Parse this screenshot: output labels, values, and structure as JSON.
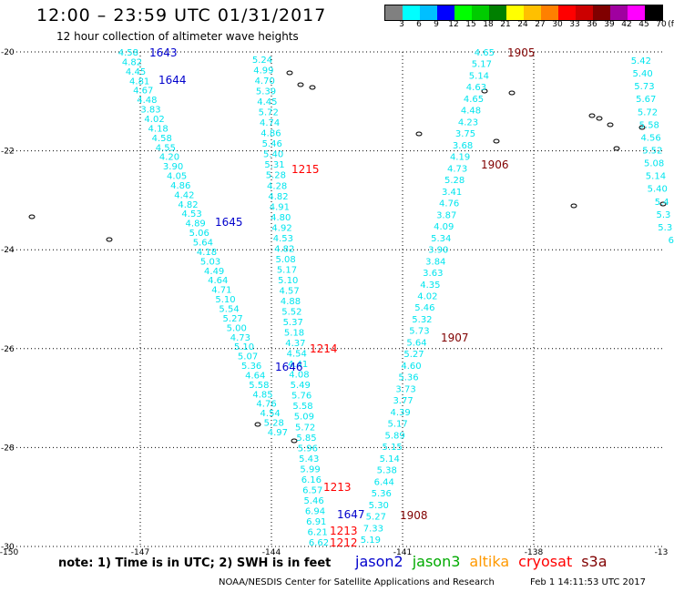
{
  "title": "12:00 – 23:59 UTC 01/31/2017",
  "subtitle": "12 hour collection of altimeter wave heights",
  "colorbar": {
    "unit_label": "(ft)",
    "ticks": [
      "3",
      "6",
      "9",
      "12",
      "15",
      "18",
      "21",
      "24",
      "27",
      "30",
      "33",
      "36",
      "39",
      "42",
      "45",
      "70"
    ],
    "colors": [
      "#808080",
      "#00ffff",
      "#00bfff",
      "#0000ff",
      "#00ff00",
      "#00cc00",
      "#008000",
      "#ffff00",
      "#ffc000",
      "#ff8000",
      "#ff0000",
      "#cc0000",
      "#800000",
      "#a000a0",
      "#ff00ff",
      "#000000"
    ]
  },
  "axes": {
    "lat_labels": [
      "-20",
      "-22",
      "-24",
      "-26",
      "-28",
      "-30"
    ],
    "lon_labels": [
      "-150",
      "-147",
      "-144",
      "-141",
      "-138",
      "-13"
    ]
  },
  "chart_data": {
    "type": "map",
    "lat_range": [
      -30,
      -20
    ],
    "lon_range": [
      -150,
      -135
    ],
    "tracks": [
      {
        "id": "1643",
        "satellite": "jason2",
        "label_color": "#0000cc",
        "label": "1643"
      },
      {
        "id": "1644",
        "satellite": "jason2",
        "label_color": "#0000cc",
        "label": "1644"
      },
      {
        "id": "1645",
        "satellite": "jason2",
        "label_color": "#0000cc",
        "label": "1645"
      },
      {
        "id": "1646",
        "satellite": "jason2",
        "label_color": "#0000cc",
        "label": "1646"
      },
      {
        "id": "1647",
        "satellite": "jason2",
        "label_color": "#0000cc",
        "label": "1647"
      },
      {
        "id": "1215",
        "satellite": "cryosat",
        "label_color": "#ff0000",
        "label": "1215"
      },
      {
        "id": "1214",
        "satellite": "cryosat",
        "label_color": "#ff0000",
        "label": "1214"
      },
      {
        "id": "1213",
        "satellite": "cryosat",
        "label_color": "#ff0000",
        "label": "1213"
      },
      {
        "id": "1212",
        "satellite": "cryosat",
        "label_color": "#ff0000",
        "label": "1212"
      },
      {
        "id": "1905",
        "satellite": "s3a",
        "label_color": "#800000",
        "label": "1905"
      },
      {
        "id": "1906",
        "satellite": "s3a",
        "label_color": "#800000",
        "label": "1906"
      },
      {
        "id": "1907",
        "satellite": "s3a",
        "label_color": "#800000",
        "label": "1907"
      },
      {
        "id": "1908",
        "satellite": "s3a",
        "label_color": "#800000",
        "label": "1908"
      }
    ],
    "swh_track_a": [
      "4.58",
      "4.82",
      "4.45",
      "4.81",
      "4.67",
      "4.48",
      "3.83",
      "4.02",
      "4.18",
      "4.58",
      "4.55",
      "4.20",
      "3.90",
      "4.05",
      "4.86",
      "4.42",
      "4.82",
      "4.53",
      "4.89",
      "5.06",
      "5.64",
      "4.18",
      "5.03",
      "4.49",
      "4.64",
      "4.71",
      "5.10",
      "5.54",
      "5.27",
      "5.00",
      "4.73",
      "5.10",
      "5.07",
      "5.36",
      "4.64",
      "5.58",
      "4.85",
      "4.76",
      "4.54",
      "5.28",
      "4.97"
    ],
    "swh_track_b": [
      "5.24",
      "4.99",
      "4.70",
      "5.39",
      "4.45",
      "5.72",
      "4.74",
      "4.86",
      "5.46",
      "5.40",
      "5.31",
      "5.28",
      "4.28",
      "4.82",
      "4.91",
      "4.80",
      "4.92",
      "4.53",
      "4.82",
      "5.08",
      "5.17",
      "5.10",
      "4.57",
      "4.88",
      "5.52",
      "5.37",
      "5.18",
      "4.37",
      "4.54",
      "4.41",
      "4.08",
      "5.49",
      "5.76",
      "5.58",
      "5.09",
      "5.72",
      "5.85",
      "5.96",
      "5.43",
      "5.99",
      "6.16",
      "6.57",
      "5.46",
      "6.94",
      "6.91",
      "6.21",
      "6.62"
    ],
    "swh_track_c": [
      "4.65",
      "5.17",
      "5.14",
      "4.63",
      "4.65",
      "4.48",
      "4.23",
      "3.75",
      "3.68",
      "4.19",
      "4.73",
      "5.28",
      "3.41",
      "4.76",
      "3.87",
      "4.09",
      "5.34",
      "3.90",
      "3.84",
      "3.63",
      "4.35",
      "4.02",
      "5.46",
      "5.32",
      "5.73",
      "5.64",
      "5.27",
      "4.60",
      "5.36",
      "3.73",
      "3.77",
      "4.39",
      "5.17",
      "5.89",
      "5.15",
      "5.14",
      "5.38",
      "6.44",
      "5.36",
      "5.30",
      "5.27",
      "7.33",
      "5.19"
    ],
    "swh_track_d": [
      "5.42",
      "5.40",
      "5.73",
      "5.67",
      "5.72",
      "5.58",
      "4.56",
      "5.52",
      "5.08",
      "5.14",
      "5.40",
      "5.4",
      "5.3",
      "5.3",
      "6"
    ]
  },
  "note": "note: 1) Time is in UTC; 2) SWH is in feet",
  "satellites": [
    {
      "name": "jason2",
      "color": "#0000cc"
    },
    {
      "name": "jason3",
      "color": "#00aa00"
    },
    {
      "name": "altika",
      "color": "#ff9900"
    },
    {
      "name": "cryosat",
      "color": "#ff0000"
    },
    {
      "name": "s3a",
      "color": "#800000"
    }
  ],
  "credit": "NOAA/NESDIS Center for Satellite Applications and Research",
  "timestamp": "Feb  1 14:11:53 UTC 2017"
}
